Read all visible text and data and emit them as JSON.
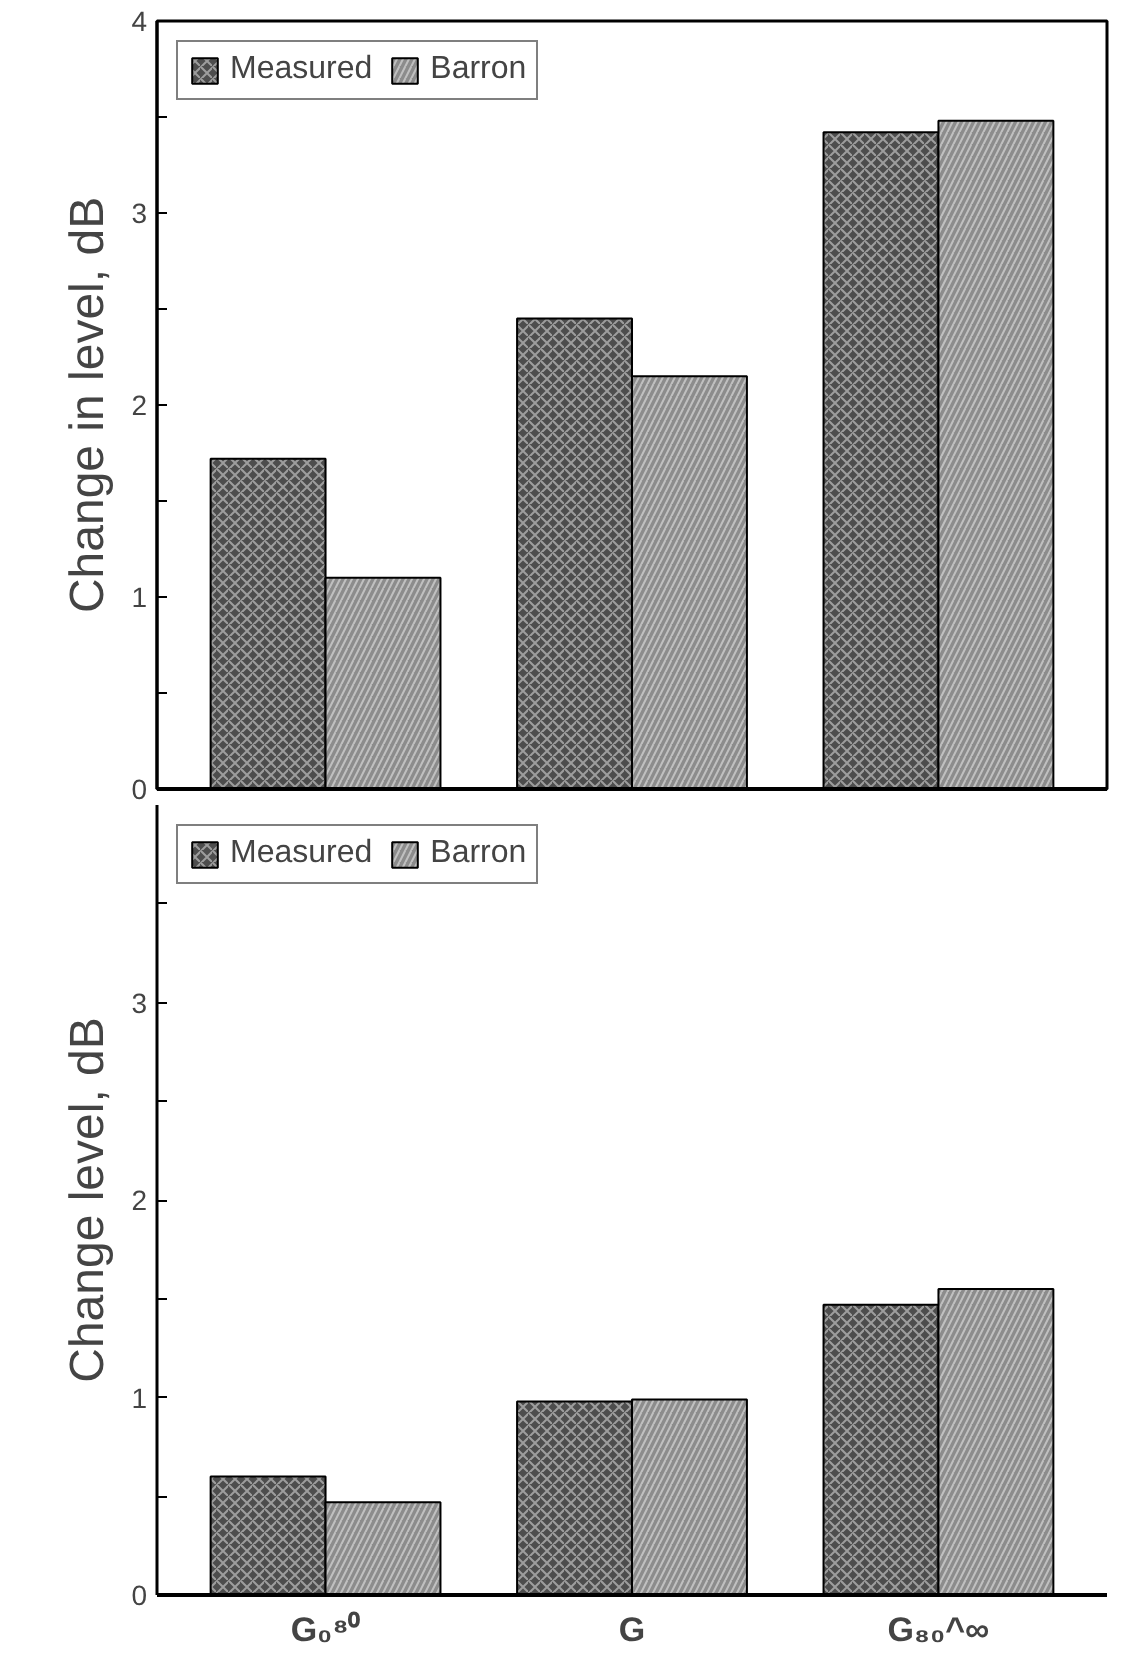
{
  "chart_data": [
    {
      "type": "bar",
      "ylabel": "Change in level, dB",
      "categories": [
        null,
        null,
        null
      ],
      "ylim": [
        0,
        4
      ],
      "yticks": [
        0,
        {
          "value": 0.5,
          "label": null
        },
        1,
        {
          "value": 1.5,
          "label": null
        },
        2,
        {
          "value": 2.5,
          "label": null
        },
        3,
        {
          "value": 3.5,
          "label": null
        },
        4
      ],
      "tick_labels": "y",
      "legend": "top left",
      "grid": false,
      "series": [
        {
          "name": "Measured",
          "color": "#4d4d4d",
          "values": [
            1.72,
            2.45,
            3.42
          ]
        },
        {
          "name": "Barron",
          "color": "#8c8c8c",
          "values": [
            1.1,
            2.15,
            3.48
          ]
        }
      ]
    },
    {
      "type": "bar",
      "ylabel": "Change level, dB",
      "categories": [
        "G₀⁸⁰",
        "G",
        "G₈₀^∞"
      ],
      "ylim": [
        0,
        4
      ],
      "yticks": [
        0,
        {
          "value": 0.5,
          "label": null
        },
        1,
        {
          "value": 1.5,
          "label": null
        },
        2,
        {
          "value": 2.5,
          "label": null
        },
        3,
        {
          "value": 3.5,
          "label": null
        }
      ],
      "legend": "top left",
      "grid": false,
      "series": [
        {
          "name": "Measured",
          "color": "#4d4d4d",
          "values": [
            0.6,
            0.98,
            1.47
          ]
        },
        {
          "name": "Barron",
          "color": "#8c8c8c",
          "values": [
            0.47,
            0.99,
            1.55
          ]
        }
      ]
    }
  ]
}
